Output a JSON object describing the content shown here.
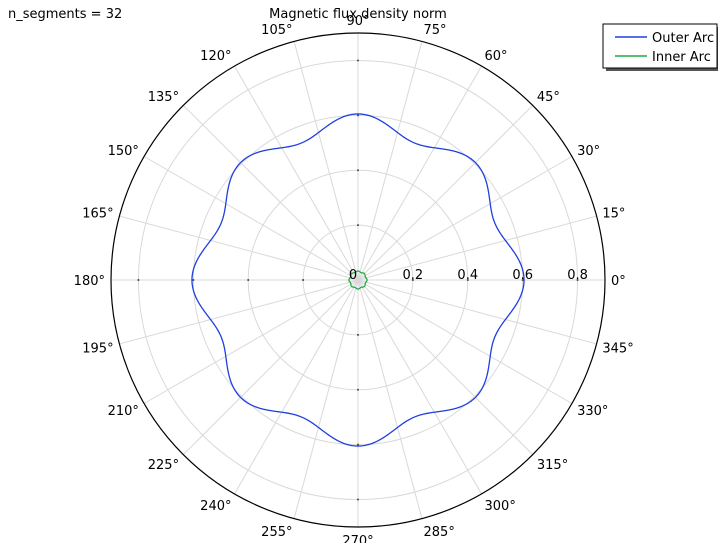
{
  "corner_label": "n_segments = 32",
  "chart_data": {
    "type": "polar-line",
    "title": "Magnetic flux density norm",
    "r_range": [
      0,
      0.9
    ],
    "r_ticks": [
      0,
      0.2,
      0.4,
      0.6,
      0.8
    ],
    "r_tick_labels": [
      "0",
      "0.2",
      "0.4",
      "0.6",
      "0.8"
    ],
    "theta_ticks_deg": [
      0,
      15,
      30,
      45,
      60,
      75,
      90,
      105,
      120,
      135,
      150,
      165,
      180,
      195,
      210,
      225,
      240,
      255,
      270,
      285,
      300,
      315,
      330,
      345
    ],
    "theta_tick_labels": [
      "0°",
      "15°",
      "30°",
      "45°",
      "60°",
      "75°",
      "90°",
      "105°",
      "120°",
      "135°",
      "150°",
      "165°",
      "180°",
      "195°",
      "210°",
      "225°",
      "240°",
      "255°",
      "270°",
      "285°",
      "300°",
      "315°",
      "330°",
      "345°"
    ],
    "grid": true,
    "legend_position": "top-right",
    "series": [
      {
        "name": "Outer Arc",
        "color": "#1f3fe0",
        "model": "r = mean + amp * cos(8 * theta)",
        "mean": 0.5725,
        "amp": 0.0325
      },
      {
        "name": "Inner Arc",
        "color": "#22aa44",
        "model": "r = mean + amp * cos(8 * theta)",
        "mean": 0.031,
        "amp": 0.002
      }
    ]
  }
}
